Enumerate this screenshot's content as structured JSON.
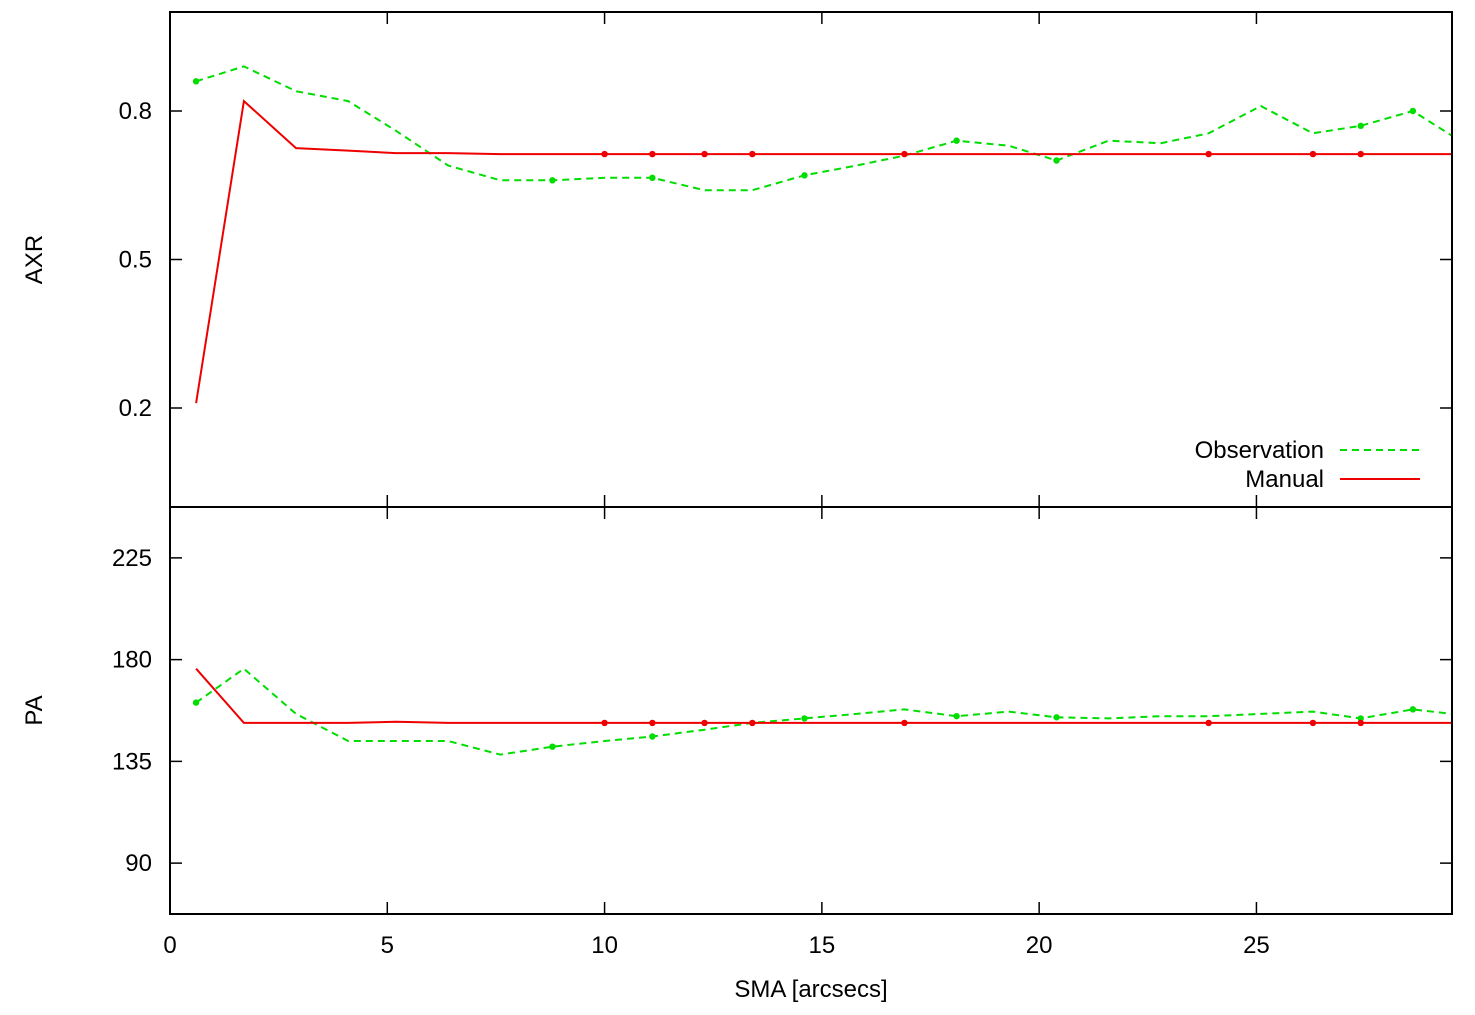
{
  "chart_data": [
    {
      "type": "line",
      "panel": "top",
      "title": "",
      "xlabel": "",
      "ylabel": "AXR",
      "xlim": [
        0,
        29.5
      ],
      "ylim": [
        0,
        1
      ],
      "xticks": [
        0,
        5,
        10,
        15,
        20,
        25
      ],
      "yticks": [
        0.2,
        0.5,
        0.8
      ],
      "ytick_labels": [
        "0.2",
        "0.5",
        "0.8"
      ],
      "grid": false,
      "legend": "bottom-right",
      "series": [
        {
          "name": "Observation",
          "color": "#00dd00",
          "dash": "dashed",
          "x": [
            0.6,
            1.7,
            2.9,
            4.1,
            5.2,
            6.4,
            7.6,
            8.8,
            10.0,
            11.1,
            12.3,
            13.4,
            14.6,
            15.8,
            16.9,
            18.1,
            19.3,
            20.4,
            21.6,
            22.8,
            23.9,
            25.1,
            26.3,
            27.4,
            28.6,
            29.5
          ],
          "y": [
            0.86,
            0.89,
            0.84,
            0.82,
            0.76,
            0.69,
            0.66,
            0.66,
            0.665,
            0.665,
            0.64,
            0.64,
            0.67,
            0.69,
            0.71,
            0.74,
            0.73,
            0.7,
            0.74,
            0.735,
            0.755,
            0.81,
            0.755,
            0.77,
            0.8,
            0.75
          ],
          "markers": [
            0.6,
            8.8,
            11.1,
            14.6,
            18.1,
            20.4,
            27.4,
            28.6
          ]
        },
        {
          "name": "Manual",
          "color": "#ee0000",
          "dash": "solid",
          "x": [
            0.6,
            1.7,
            2.9,
            4.1,
            5.2,
            6.4,
            7.6,
            8.8,
            10.0,
            11.1,
            12.3,
            13.4,
            14.6,
            15.8,
            16.9,
            18.1,
            19.3,
            20.4,
            21.6,
            22.8,
            23.9,
            25.1,
            26.3,
            27.4,
            28.6,
            29.5
          ],
          "y": [
            0.21,
            0.82,
            0.725,
            0.72,
            0.715,
            0.715,
            0.713,
            0.713,
            0.713,
            0.713,
            0.713,
            0.713,
            0.713,
            0.713,
            0.713,
            0.713,
            0.713,
            0.713,
            0.713,
            0.713,
            0.713,
            0.713,
            0.713,
            0.713,
            0.713,
            0.713
          ],
          "markers": [
            10.0,
            11.1,
            12.3,
            13.4,
            16.9,
            23.9,
            26.3,
            27.4
          ]
        }
      ]
    },
    {
      "type": "line",
      "panel": "bottom",
      "title": "",
      "xlabel": "SMA [arcsecs]",
      "ylabel": "PA",
      "xlim": [
        0,
        29.5
      ],
      "ylim": [
        67.5,
        247.5
      ],
      "xticks": [
        0,
        5,
        10,
        15,
        20,
        25
      ],
      "xtick_labels": [
        "0",
        "5",
        "10",
        "15",
        "20",
        "25"
      ],
      "yticks": [
        90,
        135,
        180,
        225
      ],
      "ytick_labels": [
        "90",
        "135",
        "180",
        "225"
      ],
      "grid": false,
      "series": [
        {
          "name": "Observation",
          "color": "#00dd00",
          "dash": "dashed",
          "x": [
            0.6,
            1.7,
            2.9,
            4.1,
            5.2,
            6.4,
            7.6,
            8.8,
            10.0,
            11.1,
            12.3,
            13.4,
            14.6,
            15.8,
            16.9,
            18.1,
            19.3,
            20.4,
            21.6,
            22.8,
            23.9,
            25.1,
            26.3,
            27.4,
            28.6,
            29.5
          ],
          "y": [
            161,
            176,
            156,
            144,
            144,
            144,
            138,
            141.5,
            144,
            146,
            149,
            152,
            154,
            156,
            158,
            155,
            157,
            154.5,
            154,
            155,
            155,
            156,
            157,
            154,
            158,
            156
          ],
          "markers": [
            0.6,
            8.8,
            11.1,
            14.6,
            18.1,
            20.4,
            27.4,
            28.6
          ]
        },
        {
          "name": "Manual",
          "color": "#ee0000",
          "dash": "solid",
          "x": [
            0.6,
            1.7,
            2.9,
            4.1,
            5.2,
            6.4,
            7.6,
            8.8,
            10.0,
            11.1,
            12.3,
            13.4,
            14.6,
            15.8,
            16.9,
            18.1,
            19.3,
            20.4,
            21.6,
            22.8,
            23.9,
            25.1,
            26.3,
            27.4,
            28.6,
            29.5
          ],
          "y": [
            176,
            152,
            152,
            152,
            152.5,
            152,
            152,
            152,
            152,
            152,
            152,
            152,
            152,
            152,
            152,
            152,
            152,
            152,
            152,
            152,
            152,
            152,
            152,
            152,
            152,
            152
          ],
          "markers": [
            10.0,
            11.1,
            12.3,
            13.4,
            16.9,
            23.9,
            26.3,
            27.4
          ]
        }
      ]
    }
  ]
}
